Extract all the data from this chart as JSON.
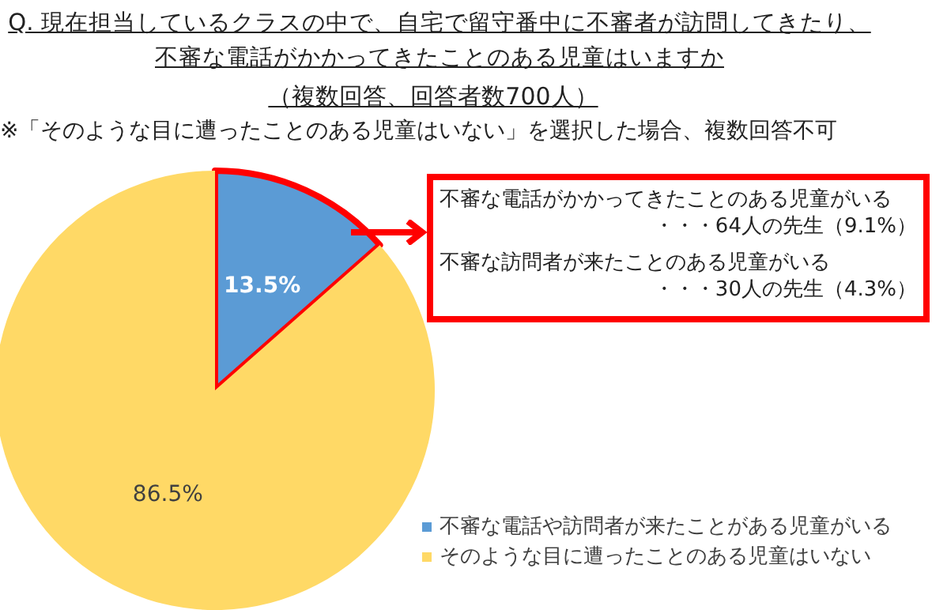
{
  "chart_data": {
    "type": "pie",
    "title": "Q. 現在担当しているクラスの中で、自宅で留守番中に不審者が訪問してきたり、不審な電話がかかってきたことのある児童はいますか",
    "subtitle": "（複数回答、回答者数700人）",
    "annotations": [
      "※「そのような目に遭ったことのある児童はいない」を選択した場合、複数回答不可",
      "不審な電話がかかってきたことのある児童がいる",
      "・・・64人の先生（9.1%）",
      "不審な訪問者が来たことのある児童がいる",
      "・・・30人の先生（4.3%）"
    ],
    "categories": [
      "不審な電話や訪問者が来たことがある児童がいる",
      "そのような目に遭ったことのある児童はいない"
    ],
    "values": [
      13.5,
      86.5
    ],
    "colors": [
      "#5b9bd5",
      "#ffd966"
    ],
    "value_labels": [
      "13.5%",
      "86.5%"
    ],
    "legend": "bottom right"
  }
}
